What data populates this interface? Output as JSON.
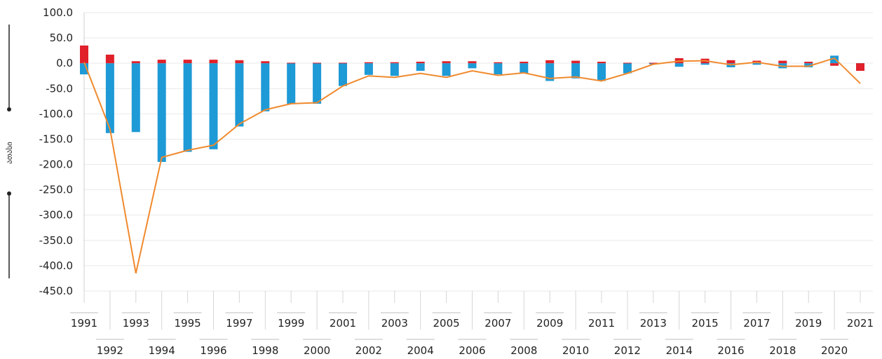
{
  "chart_data": {
    "type": "bar",
    "ylabel": "ათასი",
    "ylim": [
      -450,
      100
    ],
    "yticks": [
      100,
      50,
      0,
      -50,
      -100,
      -150,
      -200,
      -250,
      -300,
      -350,
      -400,
      -450
    ],
    "ytick_labels": [
      "100.0",
      "50.0",
      "0.0",
      "-50.0",
      "-100.0",
      "-150.0",
      "-200.0",
      "-250.0",
      "-300.0",
      "-350.0",
      "-400.0",
      "-450.0"
    ],
    "categories": [
      "1991",
      "1992",
      "1993",
      "1994",
      "1995",
      "1996",
      "1997",
      "1998",
      "1999",
      "2000",
      "2001",
      "2002",
      "2003",
      "2004",
      "2005",
      "2006",
      "2007",
      "2008",
      "2009",
      "2010",
      "2011",
      "2012",
      "2013",
      "2014",
      "2015",
      "2016",
      "2017",
      "2018",
      "2019",
      "2020",
      "2021"
    ],
    "grid": true,
    "legend": "none",
    "series": [
      {
        "type": "bar",
        "color": "#e0202a",
        "values": [
          35,
          17,
          4,
          7,
          7,
          7,
          6,
          4,
          1,
          1,
          1,
          2,
          2,
          3,
          4,
          4,
          2,
          3,
          6,
          5,
          3,
          1,
          1,
          10,
          9,
          6,
          5,
          5,
          3,
          -5,
          -15
        ]
      },
      {
        "type": "bar",
        "color": "#1e9ad6",
        "values": [
          -22,
          -138,
          -136,
          -195,
          -175,
          -170,
          -125,
          -95,
          -80,
          -80,
          -45,
          -23,
          -25,
          -15,
          -25,
          -10,
          -22,
          -20,
          -35,
          -30,
          -35,
          -20,
          -2,
          -7,
          -3,
          -8,
          -3,
          -10,
          -8,
          15,
          -10
        ]
      },
      {
        "type": "line",
        "color": "#f08a2e",
        "values": [
          2,
          -130,
          -415,
          -186,
          -172,
          -162,
          -120,
          -92,
          -80,
          -78,
          -45,
          -25,
          -28,
          -20,
          -28,
          -15,
          -24,
          -19,
          -30,
          -27,
          -35,
          -20,
          -2,
          4,
          5,
          -3,
          2,
          -6,
          -6,
          10,
          -40
        ]
      }
    ]
  }
}
